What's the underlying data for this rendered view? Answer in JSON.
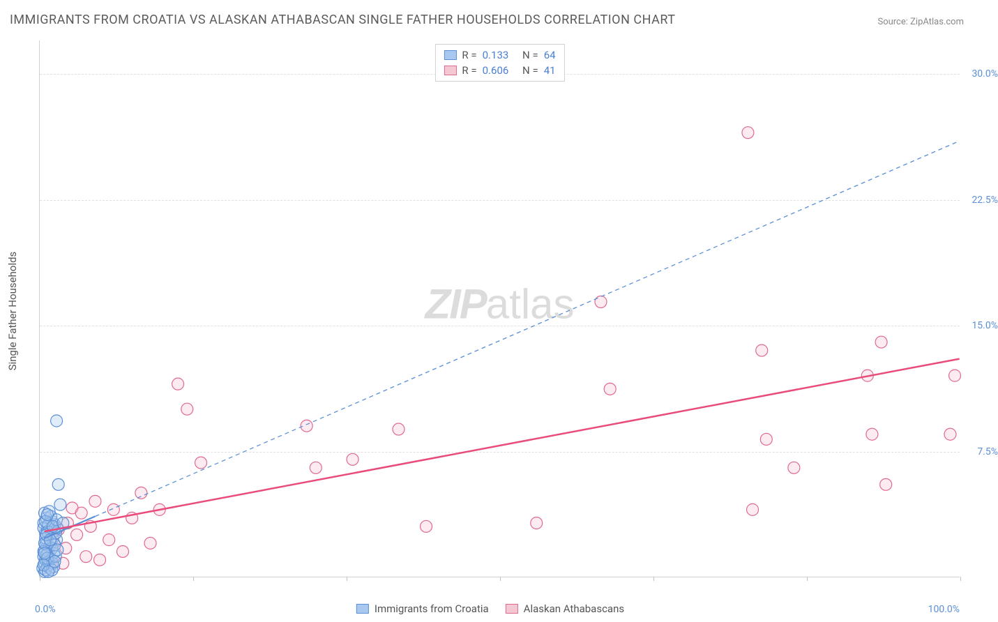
{
  "title": "IMMIGRANTS FROM CROATIA VS ALASKAN ATHABASCAN SINGLE FATHER HOUSEHOLDS CORRELATION CHART",
  "source": "Source: ZipAtlas.com",
  "y_axis_label": "Single Father Households",
  "xlim": [
    0,
    100
  ],
  "ylim": [
    0,
    32
  ],
  "x_tick_labels": {
    "min": "0.0%",
    "max": "100.0%"
  },
  "x_ticks": [
    0,
    16.67,
    33.33,
    50,
    66.67,
    83.33,
    100
  ],
  "y_gridlines": [
    {
      "value": 7.5,
      "label": "7.5%"
    },
    {
      "value": 15.0,
      "label": "15.0%"
    },
    {
      "value": 22.5,
      "label": "22.5%"
    },
    {
      "value": 30.0,
      "label": "30.0%"
    }
  ],
  "colors": {
    "series1_fill": "#a9c8ef",
    "series1_stroke": "#5a8fd6",
    "series2_fill": "#f5c7d3",
    "series2_stroke": "#e06a8f",
    "trend1": "#5a8fd6",
    "trend2": "#e94b7a",
    "grid": "#e0e0e0",
    "text": "#555555",
    "value_text": "#4a7fd6"
  },
  "marker_radius": 8.5,
  "legend_top": [
    {
      "series": 1,
      "r_label": "R =",
      "r_value": "0.133",
      "n_label": "N =",
      "n_value": "64"
    },
    {
      "series": 2,
      "r_label": "R =",
      "r_value": "0.606",
      "n_label": "N =",
      "n_value": "41"
    }
  ],
  "legend_bottom": [
    {
      "series": 1,
      "label": "Immigrants from Croatia"
    },
    {
      "series": 2,
      "label": "Alaskan Athabascans"
    }
  ],
  "watermark": {
    "zip": "ZIP",
    "atlas": "atlas"
  },
  "trend_lines": {
    "series1": {
      "x1": 0.5,
      "y1": 2.3,
      "x2": 6.0,
      "y2": 3.6,
      "dash": "none",
      "width": 2.2,
      "ext_x2": 100,
      "ext_y2": 26.0,
      "ext_dash": "6,5",
      "ext_width": 1.3
    },
    "series2": {
      "x1": 0.5,
      "y1": 2.7,
      "x2": 100,
      "y2": 13.0,
      "dash": "none",
      "width": 2.5
    }
  },
  "series1_points": [
    [
      0.3,
      0.5
    ],
    [
      0.5,
      0.8
    ],
    [
      0.4,
      1.2
    ],
    [
      0.6,
      1.0
    ],
    [
      0.8,
      1.3
    ],
    [
      0.5,
      1.6
    ],
    [
      1.0,
      1.8
    ],
    [
      0.7,
      2.1
    ],
    [
      1.2,
      2.0
    ],
    [
      0.9,
      2.4
    ],
    [
      1.4,
      2.3
    ],
    [
      0.6,
      2.6
    ],
    [
      1.1,
      2.8
    ],
    [
      0.8,
      3.0
    ],
    [
      1.5,
      2.7
    ],
    [
      0.4,
      3.2
    ],
    [
      1.3,
      3.3
    ],
    [
      0.7,
      3.5
    ],
    [
      1.6,
      3.1
    ],
    [
      0.5,
      0.3
    ],
    [
      1.0,
      0.7
    ],
    [
      0.9,
      1.5
    ],
    [
      1.8,
      2.2
    ],
    [
      0.6,
      1.9
    ],
    [
      1.2,
      1.1
    ],
    [
      0.8,
      0.6
    ],
    [
      1.5,
      1.4
    ],
    [
      0.4,
      2.9
    ],
    [
      1.7,
      2.6
    ],
    [
      0.9,
      0.9
    ],
    [
      1.3,
      1.7
    ],
    [
      0.6,
      0.4
    ],
    [
      1.9,
      2.9
    ],
    [
      0.5,
      3.8
    ],
    [
      1.1,
      0.5
    ],
    [
      0.8,
      2.7
    ],
    [
      1.4,
      0.8
    ],
    [
      0.7,
      1.3
    ],
    [
      1.6,
      1.9
    ],
    [
      0.4,
      1.5
    ],
    [
      1.2,
      3.6
    ],
    [
      0.9,
      3.1
    ],
    [
      1.8,
      3.4
    ],
    [
      0.6,
      2.3
    ],
    [
      1.5,
      0.6
    ],
    [
      0.5,
      2.0
    ],
    [
      1.0,
      3.9
    ],
    [
      0.8,
      1.1
    ],
    [
      1.3,
      0.4
    ],
    [
      0.7,
      2.5
    ],
    [
      1.7,
      1.2
    ],
    [
      0.4,
      0.7
    ],
    [
      1.9,
      1.6
    ],
    [
      0.6,
      3.3
    ],
    [
      1.1,
      2.2
    ],
    [
      0.9,
      0.3
    ],
    [
      1.4,
      3.0
    ],
    [
      0.5,
      1.4
    ],
    [
      1.6,
      0.9
    ],
    [
      0.8,
      3.7
    ],
    [
      2.2,
      4.3
    ],
    [
      2.0,
      5.5
    ],
    [
      1.8,
      9.3
    ],
    [
      2.5,
      3.2
    ]
  ],
  "series2_points": [
    [
      1.5,
      2.0
    ],
    [
      2.0,
      2.8
    ],
    [
      2.8,
      1.7
    ],
    [
      3.0,
      3.2
    ],
    [
      3.5,
      4.1
    ],
    [
      4.0,
      2.5
    ],
    [
      4.5,
      3.8
    ],
    [
      5.0,
      1.2
    ],
    [
      5.5,
      3.0
    ],
    [
      6.0,
      4.5
    ],
    [
      7.5,
      2.2
    ],
    [
      8.0,
      4.0
    ],
    [
      9.0,
      1.5
    ],
    [
      10.0,
      3.5
    ],
    [
      11.0,
      5.0
    ],
    [
      13.0,
      4.0
    ],
    [
      15.0,
      11.5
    ],
    [
      16.0,
      10.0
    ],
    [
      17.5,
      6.8
    ],
    [
      29.0,
      9.0
    ],
    [
      30.0,
      6.5
    ],
    [
      34.0,
      7.0
    ],
    [
      39.0,
      8.8
    ],
    [
      42.0,
      3.0
    ],
    [
      54.0,
      3.2
    ],
    [
      61.0,
      16.4
    ],
    [
      62.0,
      11.2
    ],
    [
      77.0,
      26.5
    ],
    [
      77.5,
      4.0
    ],
    [
      78.5,
      13.5
    ],
    [
      79.0,
      8.2
    ],
    [
      82.0,
      6.5
    ],
    [
      90.0,
      12.0
    ],
    [
      90.5,
      8.5
    ],
    [
      92.0,
      5.5
    ],
    [
      91.5,
      14.0
    ],
    [
      99.0,
      8.5
    ],
    [
      99.5,
      12.0
    ],
    [
      2.5,
      0.8
    ],
    [
      6.5,
      1.0
    ],
    [
      12.0,
      2.0
    ]
  ]
}
